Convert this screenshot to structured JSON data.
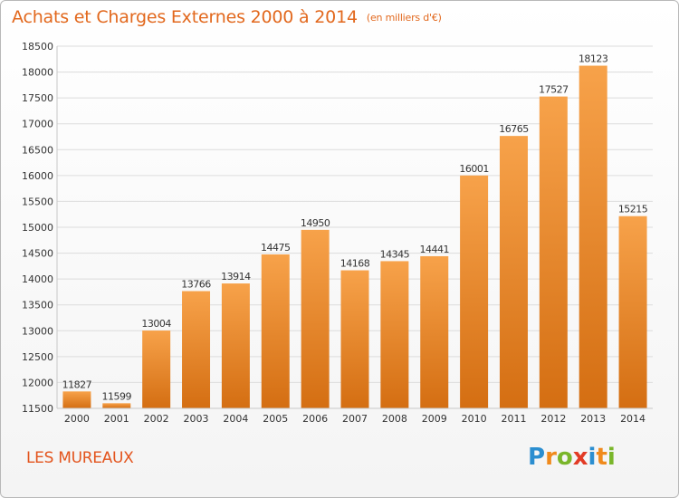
{
  "header": {
    "title": "Achats et Charges Externes 2000 à 2014",
    "subtitle": "(en milliers d'€)"
  },
  "footer": {
    "city": "LES MUREAUX",
    "logo": {
      "letters": [
        {
          "ch": "P",
          "color": "#2b8ed0"
        },
        {
          "ch": "r",
          "color": "#f08a1c"
        },
        {
          "ch": "o",
          "color": "#7ab62a"
        },
        {
          "ch": "x",
          "color": "#e23b25"
        },
        {
          "ch": "i",
          "color": "#2b8ed0"
        },
        {
          "ch": "t",
          "color": "#f08a1c"
        },
        {
          "ch": "i",
          "color": "#7ab62a"
        }
      ]
    }
  },
  "chart_data": {
    "type": "bar",
    "categories": [
      "2000",
      "2001",
      "2002",
      "2003",
      "2004",
      "2005",
      "2006",
      "2007",
      "2008",
      "2009",
      "2010",
      "2011",
      "2012",
      "2013",
      "2014"
    ],
    "values": [
      11827,
      11599,
      13004,
      13766,
      13914,
      14475,
      14950,
      14168,
      14345,
      14441,
      16001,
      16765,
      17527,
      18123,
      15215
    ],
    "ylim": [
      11500,
      18500
    ],
    "yticks": [
      11500,
      12000,
      12500,
      13000,
      13500,
      14000,
      14500,
      15000,
      15500,
      16000,
      16500,
      17000,
      17500,
      18000,
      18500
    ],
    "grid": true,
    "colors": {
      "bar_light": "#f7a24a",
      "bar_dark": "#d46e12",
      "grid": "#dcdcdc",
      "axis_text": "#333333",
      "label_text": "#333333"
    }
  }
}
